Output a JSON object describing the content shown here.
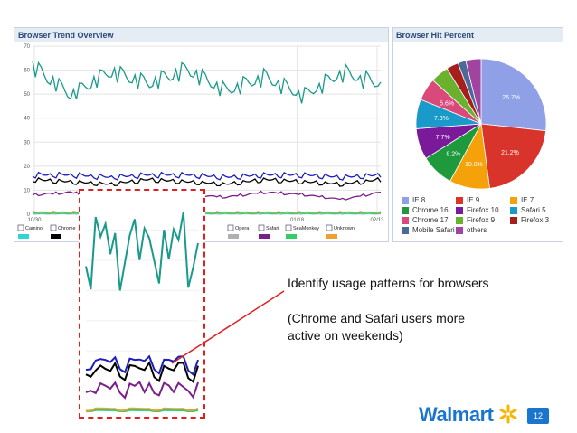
{
  "chart_data": [
    {
      "type": "line",
      "title": "Browser Trend Overview",
      "ylim": [
        0,
        70
      ],
      "y_ticks": [
        "0",
        "10",
        "20",
        "30",
        "40",
        "50",
        "60",
        "70"
      ],
      "x_ticks": [
        "10/30",
        "01/18",
        "02/13"
      ],
      "grid": true,
      "legend_placement": "bottom",
      "series": [
        {
          "name": "Camino",
          "color": "#2fd6d6",
          "values": [
            0.3,
            0.3,
            0.3,
            0.3,
            0.3,
            0.3,
            0.3,
            0.3,
            0.3,
            0.3
          ]
        },
        {
          "name": "Chrome",
          "color": "#000000",
          "values": [
            15,
            14,
            13,
            15,
            14,
            13,
            15,
            14,
            13,
            15
          ]
        },
        {
          "name": "Opera",
          "color": "#b0b0b0",
          "values": [
            0.5,
            0.5,
            0.5,
            0.5,
            0.5,
            0.5,
            0.5,
            0.5,
            0.5,
            0.5
          ]
        },
        {
          "name": "Safari",
          "color": "#7a1f8a",
          "values": [
            8,
            9,
            6,
            9,
            8,
            7,
            9,
            8,
            6,
            9
          ]
        },
        {
          "name": "SeaMonkey",
          "color": "#33cc66",
          "values": [
            0.3,
            0.3,
            0.3,
            0.3,
            0.3,
            0.3,
            0.3,
            0.3,
            0.3,
            0.3
          ]
        },
        {
          "name": "Unknown",
          "color": "#f0a030",
          "values": [
            0.8,
            0.8,
            0.8,
            0.8,
            0.8,
            0.8,
            0.8,
            0.8,
            0.8,
            0.8
          ]
        },
        {
          "name": "",
          "color": "#1a9a8a",
          "values": [
            62,
            50,
            60,
            55,
            61,
            52,
            58,
            50,
            60,
            55
          ]
        },
        {
          "name": "",
          "color": "#1d1dbf",
          "values": [
            17,
            17,
            16,
            17,
            17,
            16,
            17,
            17,
            16,
            17
          ]
        }
      ]
    },
    {
      "type": "pie",
      "title": "Browser Hit Percent",
      "slices": [
        {
          "label": "IE 8",
          "value": 26.7,
          "color": "#8fa0e6",
          "text": "26.7%"
        },
        {
          "label": "IE 9",
          "value": 21.2,
          "color": "#d9342b",
          "text": "21.2%"
        },
        {
          "label": "IE 7",
          "value": 10.0,
          "color": "#f5a10a",
          "text": "10.0%"
        },
        {
          "label": "Chrome 16",
          "value": 8.2,
          "color": "#1e9a3c",
          "text": "8.2%"
        },
        {
          "label": "Firefox 10",
          "value": 7.7,
          "color": "#7a1a9a",
          "text": "7.7%"
        },
        {
          "label": "Safari 5",
          "value": 7.3,
          "color": "#1a9ac9",
          "text": "7.3%"
        },
        {
          "label": "Chrome 17",
          "value": 5.6,
          "color": "#d9497a",
          "text": "5.6%"
        },
        {
          "label": "Firefox 9",
          "value": 4.5,
          "color": "#6ab22e",
          "text": ""
        },
        {
          "label": "Firefox 3",
          "value": 3.0,
          "color": "#a51f1f",
          "text": ""
        },
        {
          "label": "Mobile Safari 4",
          "value": 2.0,
          "color": "#4a6a9a",
          "text": ""
        },
        {
          "label": "others",
          "value": 3.8,
          "color": "#a044a0",
          "text": ""
        }
      ]
    }
  ],
  "annotation": {
    "line1": "Identify usage patterns for browsers",
    "line2": "(Chrome and Safari users more",
    "line3": "active on weekends)"
  },
  "logo": {
    "text": "Walmart"
  },
  "page_number": "12"
}
